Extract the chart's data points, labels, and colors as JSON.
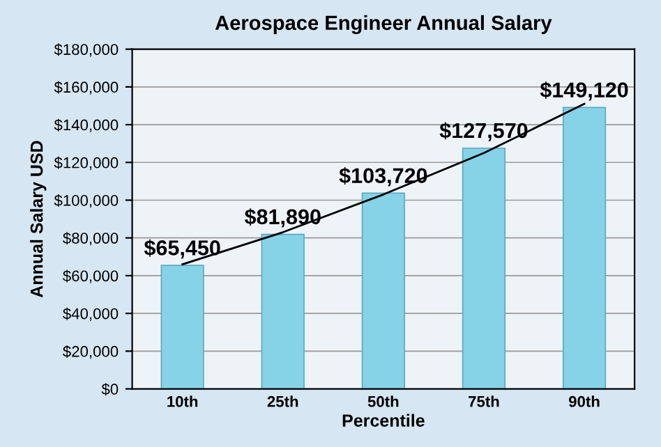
{
  "chart_data": {
    "type": "bar",
    "title": "Aerospace Engineer Annual Salary",
    "xlabel": "Percentile",
    "ylabel": "Annual Salary USD",
    "categories": [
      "10th",
      "25th",
      "50th",
      "75th",
      "90th"
    ],
    "series": [
      {
        "color": "#86d3e8",
        "values": [
          65450,
          81890,
          103720,
          127570,
          149120
        ],
        "value_labels": [
          "$65,450",
          "$81,890",
          "$103,720",
          "$127,570",
          "$149,120"
        ]
      },
      {
        "type": "line",
        "color": "#000000",
        "values": [
          66000,
          83000,
          103000,
          125000,
          151000
        ]
      }
    ],
    "ylim": [
      0,
      180000
    ],
    "yticks": [
      {
        "value": 0,
        "label": "$0"
      },
      {
        "value": 20000,
        "label": "$20,000"
      },
      {
        "value": 40000,
        "label": "$40,000"
      },
      {
        "value": 60000,
        "label": "$60,000"
      },
      {
        "value": 80000,
        "label": "$80,000"
      },
      {
        "value": 100000,
        "label": "$100,000"
      },
      {
        "value": 120000,
        "label": "$120,000"
      },
      {
        "value": 140000,
        "label": "$140,000"
      },
      {
        "value": 160000,
        "label": "$160,000"
      },
      {
        "value": 180000,
        "label": "$180,000"
      }
    ],
    "grid": "y",
    "legend": false
  }
}
